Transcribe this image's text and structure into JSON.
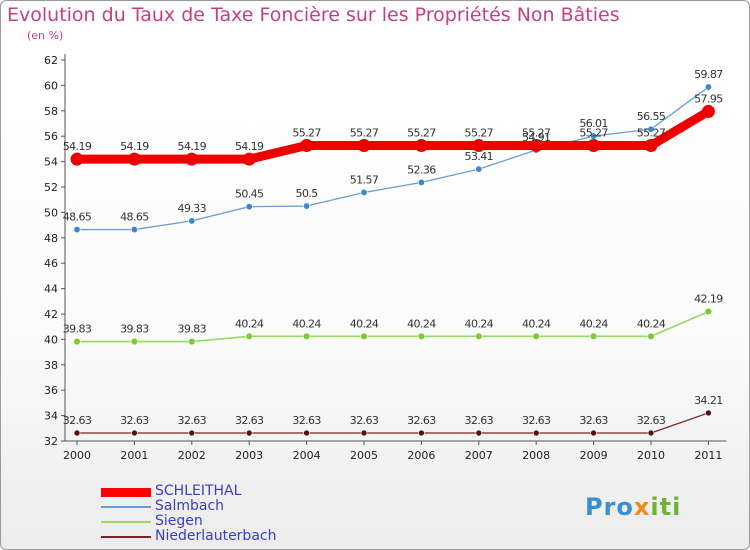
{
  "title": "Evolution du Taux de Taxe Foncière sur les Propriétés Non Bâties",
  "subtitle": "(en %)",
  "logo": {
    "part1": "Pro",
    "part2": "x",
    "part3": "iti"
  },
  "chart_data": {
    "type": "line",
    "title": "Evolution du Taux de Taxe Foncière sur les Propriétés Non Bâties",
    "ylabel": "(en %)",
    "xlabel": "",
    "x": [
      "2000",
      "2001",
      "2002",
      "2003",
      "2004",
      "2005",
      "2006",
      "2007",
      "2008",
      "2009",
      "2010",
      "2011"
    ],
    "ylim": [
      32,
      62
    ],
    "yticks": [
      32,
      34,
      36,
      38,
      40,
      42,
      44,
      46,
      48,
      50,
      52,
      54,
      56,
      58,
      60,
      62
    ],
    "grid": false,
    "legend_position": "bottom-left",
    "series": [
      {
        "name": "SCHLEITHAL",
        "color": "#ff0000",
        "values": [
          54.19,
          54.19,
          54.19,
          54.19,
          55.27,
          55.27,
          55.27,
          55.27,
          55.27,
          55.27,
          55.27,
          57.95
        ],
        "labels": [
          "54.19",
          "54.19",
          "54.19",
          "54.19",
          "55.27",
          "55.27",
          "55.27",
          "55.27",
          "55.27",
          "55.27",
          "55.27",
          "57.95"
        ]
      },
      {
        "name": "Salmbach",
        "color": "#6b9fd4",
        "values": [
          48.65,
          48.65,
          49.33,
          50.45,
          50.5,
          51.57,
          52.36,
          53.41,
          54.91,
          56.01,
          56.55,
          59.87
        ],
        "labels": [
          "48.65",
          "48.65",
          "49.33",
          "50.45",
          "50.5",
          "51.57",
          "52.36",
          "53.41",
          "54.91",
          "56.01",
          "56.55",
          "59.87"
        ]
      },
      {
        "name": "Siegen",
        "color": "#9ad864",
        "values": [
          39.83,
          39.83,
          39.83,
          40.24,
          40.24,
          40.24,
          40.24,
          40.24,
          40.24,
          40.24,
          40.24,
          42.19
        ],
        "labels": [
          "39.83",
          "39.83",
          "39.83",
          "40.24",
          "40.24",
          "40.24",
          "40.24",
          "40.24",
          "40.24",
          "40.24",
          "40.24",
          "42.19"
        ]
      },
      {
        "name": "Niederlauterbach",
        "color": "#7a2424",
        "values": [
          32.63,
          32.63,
          32.63,
          32.63,
          32.63,
          32.63,
          32.63,
          32.63,
          32.63,
          32.63,
          32.63,
          34.21
        ],
        "labels": [
          "32.63",
          "32.63",
          "32.63",
          "32.63",
          "32.63",
          "32.63",
          "32.63",
          "32.63",
          "32.63",
          "32.63",
          "32.63",
          "34.21"
        ]
      }
    ]
  }
}
